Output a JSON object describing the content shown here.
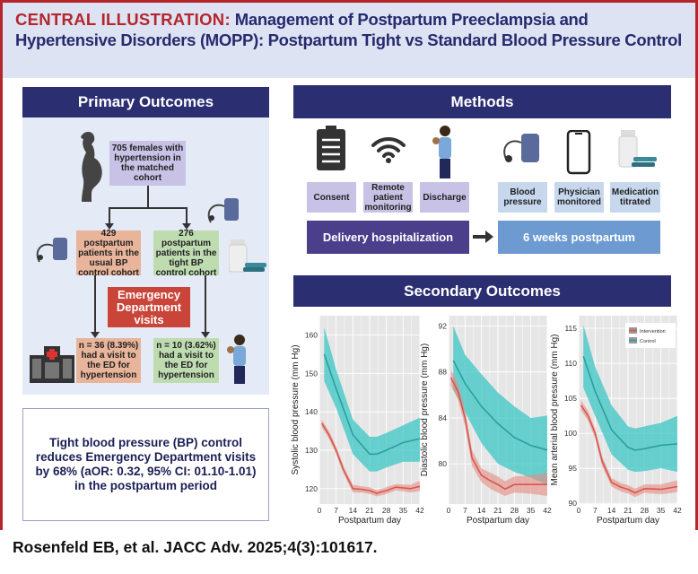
{
  "header": {
    "prefix": "CENTRAL ILLUSTRATION:",
    "title": "Management of Postpartum Preeclampsia and Hypertensive Disorders (MOPP): Postpartum Tight vs Standard Blood Pressure Control"
  },
  "primary": {
    "title": "Primary Outcomes",
    "cohort": "705 females with hypertension in the matched cohort",
    "usual": "429 postpartum patients in the usual BP control cohort",
    "tight": "276 postpartum patients in the tight BP control cohort",
    "ed": "Emergency Department visits",
    "usual_result": "n = 36 (8.39%) had a visit to the ED for hypertension",
    "tight_result": "n = 10 (3.62%) had a visit to the ED for hypertension",
    "icons": [
      "pregnant-woman-icon",
      "bp-cuff-icon",
      "medication-bottle-icon",
      "hospital-icon",
      "mother-baby-icon"
    ]
  },
  "summary": "Tight blood pressure (BP) control reduces Emergency Department visits by 68% (aOR: 0.32, 95% CI: 01.10-1.01) in the postpartum period",
  "methods": {
    "title": "Methods",
    "steps": [
      "Consent",
      "Remote patient monitoring",
      "Discharge",
      "Blood pressure",
      "Physician monitored",
      "Medication titrated"
    ],
    "icons": [
      "clipboard-icon",
      "wifi-icon",
      "mother-baby-icon",
      "bp-cuff-icon",
      "smartphone-icon",
      "medication-bottle-icon"
    ],
    "phase1": "Delivery hospitalization",
    "phase2": "6 weeks postpartum"
  },
  "secondary": {
    "title": "Secondary Outcomes"
  },
  "colors": {
    "intervention": "#d4584e",
    "control": "#2a9f9f",
    "navy": "#2b2f72",
    "red": "#b5262c"
  },
  "chart_data": [
    {
      "type": "line",
      "xlabel": "Postpartum day",
      "ylabel": "Systolic blood pressure (mm Hg)",
      "xlim": [
        0,
        42
      ],
      "ylim": [
        116,
        165
      ],
      "xticks": [
        0,
        7,
        14,
        21,
        28,
        35,
        42
      ],
      "yticks": [
        120,
        130,
        140,
        150,
        160
      ],
      "grid": true,
      "series": [
        {
          "name": "Control",
          "x": [
            2,
            7,
            14,
            21,
            24,
            28,
            35,
            42
          ],
          "y": [
            155,
            146,
            134,
            129,
            129,
            130,
            132,
            133
          ],
          "lower": [
            148,
            141,
            129,
            124.5,
            124.5,
            125.5,
            127,
            127
          ],
          "upper": [
            162,
            151,
            138,
            133.5,
            133.5,
            134.5,
            136.5,
            138.5
          ]
        },
        {
          "name": "Intervention",
          "x": [
            1,
            4,
            7,
            10,
            14,
            18,
            21,
            24,
            28,
            32,
            38,
            42
          ],
          "y": [
            137,
            134,
            130,
            125,
            120,
            119.8,
            119.5,
            118.8,
            119.5,
            120.4,
            120,
            120.6
          ],
          "lower": [
            136,
            133,
            129,
            124,
            119,
            119,
            118.6,
            118,
            118.6,
            119.6,
            119,
            119.4
          ],
          "upper": [
            138,
            135,
            131,
            126,
            121,
            120.6,
            120.4,
            119.6,
            120.4,
            121.2,
            121,
            122
          ]
        }
      ]
    },
    {
      "type": "line",
      "xlabel": "Postpartum day",
      "ylabel": "Diastolic blood pressure (mm Hg)",
      "xlim": [
        0,
        42
      ],
      "ylim": [
        76.5,
        92.9
      ],
      "xticks": [
        0,
        7,
        14,
        21,
        28,
        35,
        42
      ],
      "yticks": [
        80,
        84,
        88,
        92
      ],
      "grid": true,
      "series": [
        {
          "name": "Control",
          "x": [
            2,
            7,
            14,
            21,
            28,
            35,
            42
          ],
          "y": [
            89,
            87,
            85,
            83.5,
            82.3,
            81.6,
            81.2
          ],
          "lower": [
            86.5,
            84.5,
            81.8,
            80,
            79.3,
            78.8,
            78.2
          ],
          "upper": [
            92,
            89.5,
            87.8,
            86.2,
            85,
            84,
            84.2
          ]
        },
        {
          "name": "Intervention",
          "x": [
            1,
            4,
            7,
            10,
            14,
            18,
            21,
            24,
            28,
            35,
            42
          ],
          "y": [
            87.5,
            86.3,
            84,
            80.5,
            79,
            78.5,
            78.2,
            77.8,
            78.2,
            78.2,
            78.2
          ],
          "lower": [
            86.8,
            85.6,
            83.3,
            79.8,
            78.4,
            77.8,
            77.5,
            77.2,
            77.5,
            77.4,
            77.2
          ],
          "upper": [
            88.2,
            87,
            84.7,
            81.2,
            79.6,
            79.2,
            78.9,
            78.5,
            78.9,
            79,
            79.2
          ]
        }
      ]
    },
    {
      "type": "line",
      "xlabel": "Postpartum day",
      "ylabel": "Mean arterial blood pressure (mm Hg)",
      "xlim": [
        0,
        42
      ],
      "ylim": [
        89.9,
        116.8
      ],
      "xticks": [
        0,
        7,
        14,
        21,
        28,
        35,
        42
      ],
      "yticks": [
        90,
        95,
        100,
        105,
        110,
        115
      ],
      "grid": true,
      "legend": "top-right",
      "series": [
        {
          "name": "Intervention",
          "x": [
            1,
            4,
            7,
            10,
            14,
            18,
            21,
            24,
            28,
            35,
            42
          ],
          "y": [
            104,
            102.5,
            100,
            96,
            93,
            92.3,
            92,
            91.5,
            92.1,
            92,
            92.4
          ],
          "lower": [
            103.3,
            101.8,
            99.3,
            95.3,
            92.4,
            91.7,
            91.4,
            90.9,
            91.5,
            91.3,
            91.6
          ],
          "upper": [
            104.7,
            103.2,
            100.7,
            96.7,
            93.6,
            92.9,
            92.6,
            92.1,
            92.7,
            92.7,
            93.3
          ]
        },
        {
          "name": "Control",
          "x": [
            2,
            7,
            14,
            21,
            24,
            28,
            35,
            42
          ],
          "y": [
            111,
            106,
            100.5,
            98,
            97.6,
            97.8,
            98.3,
            98.5
          ],
          "lower": [
            106.5,
            102.5,
            97,
            94.8,
            94.5,
            94.6,
            95,
            94.5
          ],
          "upper": [
            115.5,
            109.5,
            104,
            101,
            100.7,
            101,
            101.5,
            102.5
          ]
        }
      ]
    }
  ],
  "citation": "Rosenfeld EB, et al. JACC Adv. 2025;4(3):101617."
}
